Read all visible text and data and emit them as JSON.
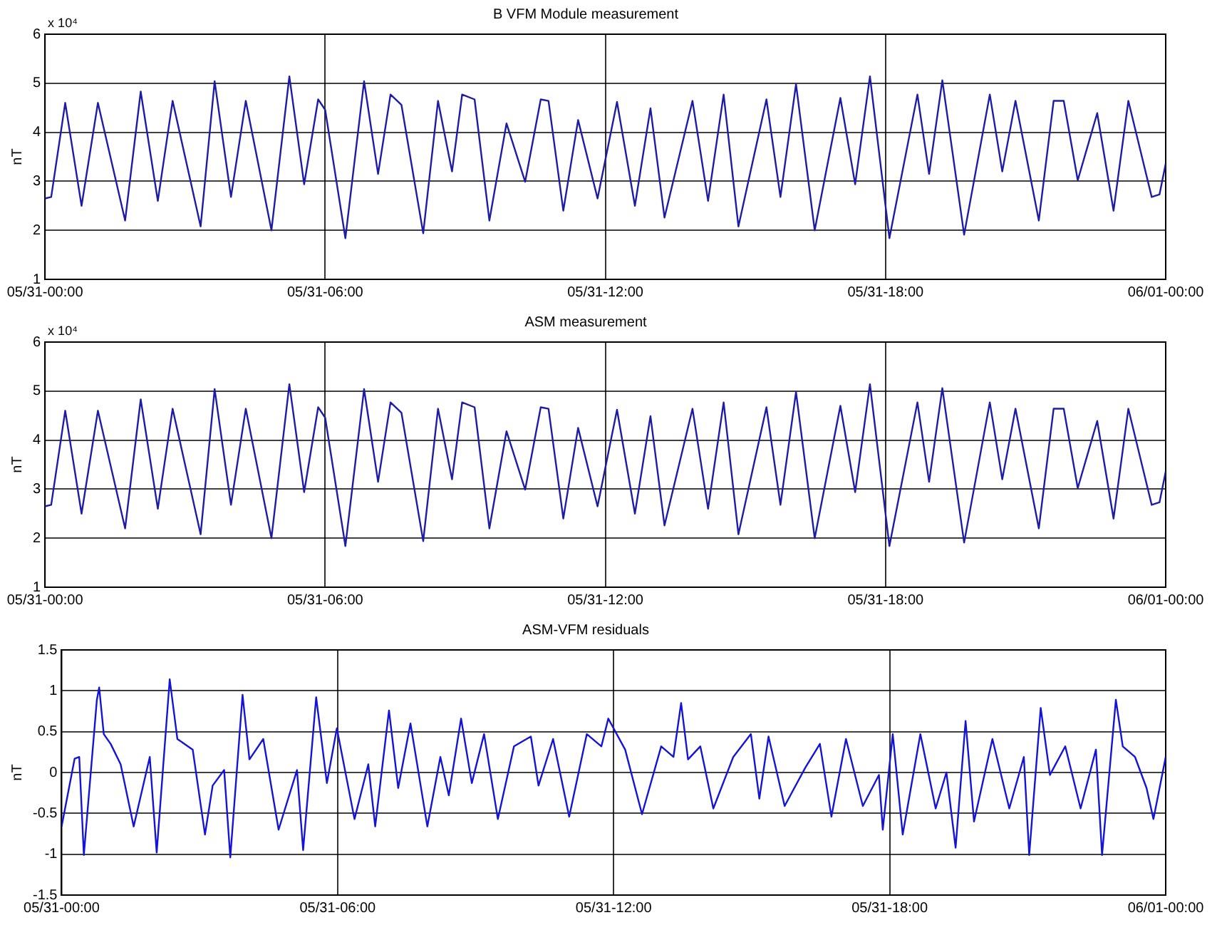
{
  "chart_data": [
    {
      "type": "line",
      "title": "B VFM Module measurement",
      "ylabel": "nT",
      "annotations": [
        "x 10⁴"
      ],
      "color": "#1c1ca8",
      "grid": true,
      "xlim": [
        "--05-31T00:00",
        "--06-01T00:00"
      ],
      "xticks": [
        {
          "value": "--05-31T00:00",
          "label": "05/31-00:00"
        },
        {
          "value": "--05-31T06:00",
          "label": "05/31-06:00"
        },
        {
          "value": "--05-31T12:00",
          "label": "05/31-12:00"
        },
        {
          "value": "--05-31T18:00",
          "label": "05/31-18:00"
        },
        {
          "value": "--06-01T00:00",
          "label": "06/01-00:00"
        }
      ],
      "ylim": [
        1,
        6
      ],
      "yticks": [
        1,
        2,
        3,
        4,
        5,
        6
      ],
      "x": [
        "--05-31T00:00",
        "--05-31T00:08",
        "--05-31T00:26",
        "--05-31T00:47",
        "--05-31T01:08",
        "--05-31T01:43",
        "--05-31T02:03",
        "--05-31T02:25",
        "--05-31T02:44",
        "--05-31T03:20",
        "--05-31T03:38",
        "--05-31T03:59",
        "--05-31T04:18",
        "--05-31T04:51",
        "--05-31T05:14",
        "--05-31T05:33",
        "--05-31T05:51",
        "--05-31T06:00",
        "--05-31T06:26",
        "--05-31T06:50",
        "--05-31T07:08",
        "--05-31T07:24",
        "--05-31T07:38",
        "--05-31T08:06",
        "--05-31T08:25",
        "--05-31T08:43",
        "--05-31T08:56",
        "--05-31T09:12",
        "--05-31T09:31",
        "--05-31T09:53",
        "--05-31T10:17",
        "--05-31T10:37",
        "--05-31T10:47",
        "--05-31T11:06",
        "--05-31T11:25",
        "--05-31T11:50",
        "--05-31T12:15",
        "--05-31T12:38",
        "--05-31T12:58",
        "--05-31T13:16",
        "--05-31T13:52",
        "--05-31T14:12",
        "--05-31T14:32",
        "--05-31T14:51",
        "--05-31T15:27",
        "--05-31T15:45",
        "--05-31T16:05",
        "--05-31T16:29",
        "--05-31T17:02",
        "--05-31T17:21",
        "--05-31T17:40",
        "--05-31T18:05",
        "--05-31T18:41",
        "--05-31T18:56",
        "--05-31T19:13",
        "--05-31T19:41",
        "--05-31T20:14",
        "--05-31T20:30",
        "--05-31T20:47",
        "--05-31T21:17",
        "--05-31T21:36",
        "--05-31T21:49",
        "--05-31T22:07",
        "--05-31T22:32",
        "--05-31T22:53",
        "--05-31T23:12",
        "--05-31T23:42",
        "--05-31T23:52",
        "--06-01T00:00"
      ],
      "values": [
        2.65,
        2.68,
        4.6,
        2.5,
        4.6,
        2.2,
        4.83,
        2.6,
        4.64,
        2.08,
        5.04,
        2.68,
        4.64,
        2.0,
        5.14,
        2.94,
        4.67,
        4.46,
        1.84,
        5.04,
        3.15,
        4.77,
        4.56,
        1.94,
        4.64,
        3.2,
        4.77,
        4.67,
        2.2,
        4.18,
        2.99,
        4.67,
        4.64,
        2.4,
        4.25,
        2.65,
        4.62,
        2.5,
        4.49,
        2.26,
        4.64,
        2.6,
        4.77,
        2.08,
        4.67,
        2.68,
        4.98,
        2.0,
        4.7,
        2.94,
        5.14,
        1.84,
        4.77,
        3.15,
        5.06,
        1.91,
        4.77,
        3.2,
        4.64,
        2.2,
        4.64,
        4.64,
        3.02,
        4.39,
        2.4,
        4.64,
        2.68,
        2.73,
        3.36
      ]
    },
    {
      "type": "line",
      "title": "ASM measurement",
      "ylabel": "nT",
      "annotations": [
        "x 10⁴"
      ],
      "color": "#1c1ca8",
      "grid": true,
      "xlim": [
        "--05-31T00:00",
        "--06-01T00:00"
      ],
      "xticks": [
        {
          "value": "--05-31T00:00",
          "label": "05/31-00:00"
        },
        {
          "value": "--05-31T06:00",
          "label": "05/31-06:00"
        },
        {
          "value": "--05-31T12:00",
          "label": "05/31-12:00"
        },
        {
          "value": "--05-31T18:00",
          "label": "05/31-18:00"
        },
        {
          "value": "--06-01T00:00",
          "label": "06/01-00:00"
        }
      ],
      "ylim": [
        1,
        6
      ],
      "yticks": [
        1,
        2,
        3,
        4,
        5,
        6
      ],
      "x": [
        "--05-31T00:00",
        "--05-31T00:08",
        "--05-31T00:26",
        "--05-31T00:47",
        "--05-31T01:08",
        "--05-31T01:43",
        "--05-31T02:03",
        "--05-31T02:25",
        "--05-31T02:44",
        "--05-31T03:20",
        "--05-31T03:38",
        "--05-31T03:59",
        "--05-31T04:18",
        "--05-31T04:51",
        "--05-31T05:14",
        "--05-31T05:33",
        "--05-31T05:51",
        "--05-31T06:00",
        "--05-31T06:26",
        "--05-31T06:50",
        "--05-31T07:08",
        "--05-31T07:24",
        "--05-31T07:38",
        "--05-31T08:06",
        "--05-31T08:25",
        "--05-31T08:43",
        "--05-31T08:56",
        "--05-31T09:12",
        "--05-31T09:31",
        "--05-31T09:53",
        "--05-31T10:17",
        "--05-31T10:37",
        "--05-31T10:47",
        "--05-31T11:06",
        "--05-31T11:25",
        "--05-31T11:50",
        "--05-31T12:15",
        "--05-31T12:38",
        "--05-31T12:58",
        "--05-31T13:16",
        "--05-31T13:52",
        "--05-31T14:12",
        "--05-31T14:32",
        "--05-31T14:51",
        "--05-31T15:27",
        "--05-31T15:45",
        "--05-31T16:05",
        "--05-31T16:29",
        "--05-31T17:02",
        "--05-31T17:21",
        "--05-31T17:40",
        "--05-31T18:05",
        "--05-31T18:41",
        "--05-31T18:56",
        "--05-31T19:13",
        "--05-31T19:41",
        "--05-31T20:14",
        "--05-31T20:30",
        "--05-31T20:47",
        "--05-31T21:17",
        "--05-31T21:36",
        "--05-31T21:49",
        "--05-31T22:07",
        "--05-31T22:32",
        "--05-31T22:53",
        "--05-31T23:12",
        "--05-31T23:42",
        "--05-31T23:52",
        "--06-01T00:00"
      ],
      "values": [
        2.65,
        2.68,
        4.6,
        2.5,
        4.6,
        2.2,
        4.83,
        2.6,
        4.64,
        2.08,
        5.04,
        2.68,
        4.64,
        2.0,
        5.14,
        2.94,
        4.67,
        4.46,
        1.84,
        5.04,
        3.15,
        4.77,
        4.56,
        1.94,
        4.64,
        3.2,
        4.77,
        4.67,
        2.2,
        4.18,
        2.99,
        4.67,
        4.64,
        2.4,
        4.25,
        2.65,
        4.62,
        2.5,
        4.49,
        2.26,
        4.64,
        2.6,
        4.77,
        2.08,
        4.67,
        2.68,
        4.98,
        2.0,
        4.7,
        2.94,
        5.14,
        1.84,
        4.77,
        3.15,
        5.06,
        1.91,
        4.77,
        3.2,
        4.64,
        2.2,
        4.64,
        4.64,
        3.02,
        4.39,
        2.4,
        4.64,
        2.68,
        2.73,
        3.36
      ]
    },
    {
      "type": "line",
      "title": "ASM-VFM residuals",
      "ylabel": "nT",
      "color": "#1414d8",
      "grid": true,
      "xlim": [
        "--05-31T00:00",
        "--06-01T00:00"
      ],
      "xticks": [
        {
          "value": "--05-31T00:00",
          "label": "05/31-00:00"
        },
        {
          "value": "--05-31T06:00",
          "label": "05/31-06:00"
        },
        {
          "value": "--05-31T12:00",
          "label": "05/31-12:00"
        },
        {
          "value": "--05-31T18:00",
          "label": "05/31-18:00"
        },
        {
          "value": "--06-01T00:00",
          "label": "06/01-00:00"
        }
      ],
      "ylim": [
        -1.5,
        1.5
      ],
      "yticks": [
        -1.5,
        -1,
        -0.5,
        0,
        0.5,
        1,
        1.5
      ],
      "x": [
        "--05-31T00:00",
        "--05-31T00:17",
        "--05-31T00:23",
        "--05-31T00:29",
        "--05-31T00:46",
        "--05-31T00:49",
        "--05-31T00:55",
        "--05-31T01:04",
        "--05-31T01:17",
        "--05-31T01:34",
        "--05-31T01:55",
        "--05-31T02:04",
        "--05-31T02:21",
        "--05-31T02:31",
        "--05-31T02:51",
        "--05-31T03:07",
        "--05-31T03:17",
        "--05-31T03:32",
        "--05-31T03:40",
        "--05-31T03:56",
        "--05-31T04:05",
        "--05-31T04:23",
        "--05-31T04:43",
        "--05-31T05:07",
        "--05-31T05:15",
        "--05-31T05:32",
        "--05-31T05:46",
        "--05-31T05:59",
        "--05-31T06:22",
        "--05-31T06:40",
        "--05-31T06:49",
        "--05-31T07:07",
        "--05-31T07:19",
        "--05-31T07:35",
        "--05-31T07:57",
        "--05-31T08:14",
        "--05-31T08:25",
        "--05-31T08:41",
        "--05-31T08:55",
        "--05-31T09:11",
        "--05-31T09:29",
        "--05-31T09:50",
        "--05-31T10:12",
        "--05-31T10:22",
        "--05-31T10:41",
        "--05-31T11:02",
        "--05-31T11:25",
        "--05-31T11:44",
        "--05-31T11:53",
        "--05-31T12:15",
        "--05-31T12:37",
        "--05-31T13:02",
        "--05-31T13:18",
        "--05-31T13:28",
        "--05-31T13:37",
        "--05-31T13:53",
        "--05-31T14:10",
        "--05-31T14:36",
        "--05-31T14:59",
        "--05-31T15:10",
        "--05-31T15:22",
        "--05-31T15:43",
        "--05-31T16:10",
        "--05-31T16:29",
        "--05-31T16:44",
        "--05-31T17:03",
        "--05-31T17:25",
        "--05-31T17:46",
        "--05-31T17:51",
        "--05-31T18:04",
        "--05-31T18:17",
        "--05-31T18:40",
        "--05-31T19:00",
        "--05-31T19:14",
        "--05-31T19:26",
        "--05-31T19:39",
        "--05-31T19:50",
        "--05-31T20:14",
        "--05-31T20:36",
        "--05-31T20:55",
        "--05-31T21:02",
        "--05-31T21:17",
        "--05-31T21:29",
        "--05-31T21:49",
        "--05-31T22:09",
        "--05-31T22:29",
        "--05-31T22:37",
        "--05-31T22:55",
        "--05-31T23:04",
        "--05-31T23:20",
        "--05-31T23:35",
        "--05-31T23:44",
        "--06-01T00:00"
      ],
      "values": [
        -0.66,
        0.17,
        0.19,
        -1.01,
        0.89,
        1.04,
        0.47,
        0.35,
        0.1,
        -0.66,
        0.19,
        -0.98,
        1.14,
        0.41,
        0.28,
        -0.76,
        -0.16,
        0.03,
        -1.04,
        0.95,
        0.16,
        0.41,
        -0.7,
        0.03,
        -0.95,
        0.92,
        -0.13,
        0.54,
        -0.57,
        0.1,
        -0.66,
        0.76,
        -0.19,
        0.6,
        -0.66,
        0.19,
        -0.28,
        0.66,
        -0.13,
        0.47,
        -0.57,
        0.32,
        0.44,
        -0.16,
        0.41,
        -0.54,
        0.47,
        0.32,
        0.66,
        0.28,
        -0.51,
        0.32,
        0.19,
        0.85,
        0.16,
        0.32,
        -0.44,
        0.19,
        0.47,
        -0.32,
        0.44,
        -0.41,
        0.06,
        0.35,
        -0.54,
        0.41,
        -0.41,
        -0.03,
        -0.7,
        0.47,
        -0.76,
        0.47,
        -0.44,
        0,
        -0.92,
        0.63,
        -0.6,
        0.41,
        -0.44,
        0.19,
        -1.01,
        0.79,
        -0.03,
        0.32,
        -0.44,
        0.28,
        -1.01,
        0.89,
        0.32,
        0.19,
        -0.19,
        -0.57,
        0.19
      ]
    }
  ]
}
